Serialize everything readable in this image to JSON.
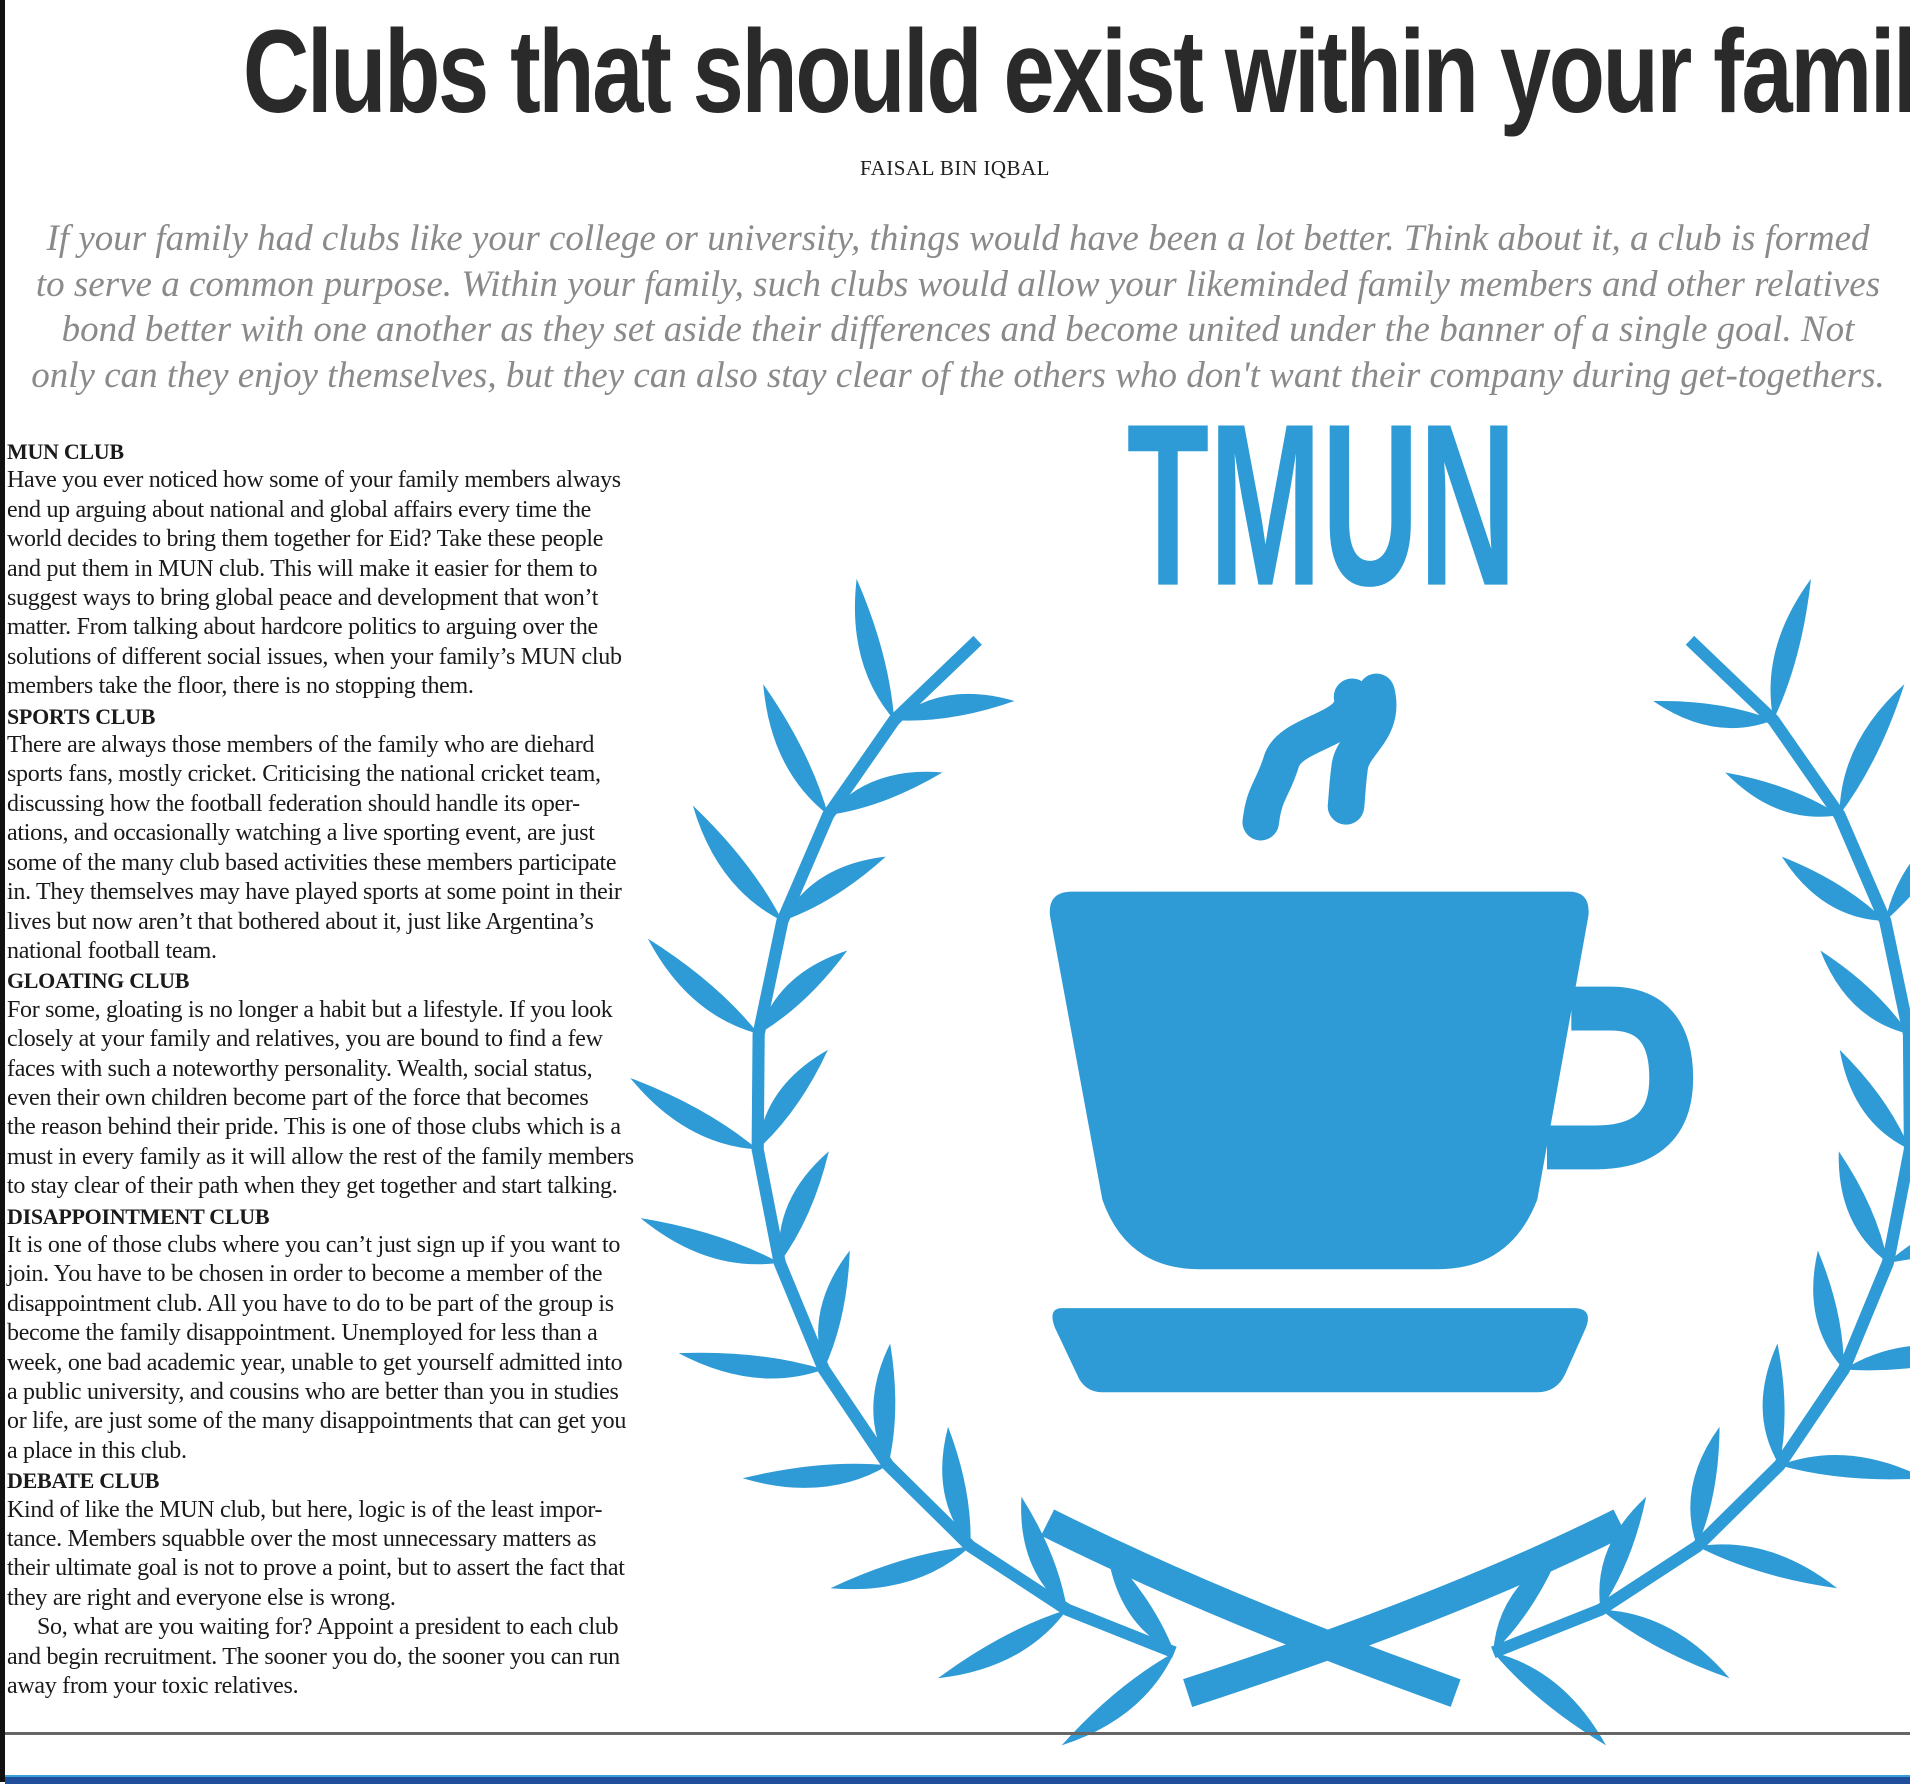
{
  "article": {
    "title": "Clubs that should exist within your family",
    "byline": "FAISAL BIN IQBAL",
    "intro_lines": [
      "If your family had clubs like your college or university, things would have been a lot better. Think about it, a club is formed",
      "to serve a common purpose. Within your family, such clubs would allow your likeminded family members and other relatives",
      "bond better with one another as they set aside their differences and become united under the banner of a single goal. Not",
      "only can they enjoy themselves, but they can also stay clear of the others who don't want their company during get-togethers."
    ],
    "sections": [
      {
        "heading": "MUN CLUB",
        "lines": [
          "Have you ever noticed how some of your family members always",
          "end up arguing about national and global affairs every time the",
          "world decides to bring them together for Eid? Take these people",
          "and put them in MUN club. This will make it easier for them to",
          "suggest ways to bring global peace and development that won’t",
          "matter. From talking about hardcore politics to arguing over the",
          "solutions of different social issues, when your family’s MUN club",
          "members take the floor, there is no stopping them."
        ]
      },
      {
        "heading": "SPORTS CLUB",
        "lines": [
          "There are always those members of the family who are diehard",
          "sports fans, mostly cricket. Criticising the national cricket team,",
          "discussing how the football federation should handle its oper-",
          "ations, and occasionally watching a live sporting event, are just",
          "some of the many club based activities these members participate",
          "in. They themselves may have played sports at some point in their",
          "lives but now aren’t that bothered about it, just like Argentina’s",
          "national football team."
        ]
      },
      {
        "heading": "GLOATING CLUB",
        "lines": [
          "For some, gloating is no longer a habit but a lifestyle. If you look",
          "closely at your family and relatives, you are bound to find a few",
          "faces with such a noteworthy personality. Wealth, social status,",
          "even their own children become part of the force that becomes",
          "the reason behind their pride. This is one of those clubs which is a",
          "must in every family as it will allow the rest of the family members",
          "to stay clear of their path when they get together and start talking."
        ]
      },
      {
        "heading": "DISAPPOINTMENT CLUB",
        "lines": [
          "It is one of those clubs where you can’t just sign up if you want to",
          "join. You have to be chosen in order to become a member of the",
          "disappointment club. All you have to do to be part of the group is",
          "become the family disappointment. Unemployed for less than a",
          "week, one bad academic year, unable to get yourself admitted into",
          "a public university, and cousins who are better than you in studies",
          "or life, are just some of the many disappointments that can get you",
          "a place in this club."
        ]
      },
      {
        "heading": "DEBATE CLUB",
        "lines": [
          "Kind of like the MUN club, but here, logic is of the least impor-",
          "tance. Members squabble over the most unnecessary matters as",
          "their ultimate goal is not to prove a point, but to assert the fact that",
          "they are right and everyone else is wrong."
        ]
      }
    ],
    "closing_lines": [
      "So, what are you waiting for? Appoint a president to each club",
      "and begin recruitment. The sooner you do, the sooner you can run",
      "away from your toxic relatives."
    ]
  },
  "illustration": {
    "logo_text": "TMUN",
    "icon": "coffee-cup-in-laurel-wreath-icon",
    "color": "#2e9bd6"
  },
  "colors": {
    "title": "#2a2a2a",
    "intro": "#8a8a8a",
    "footer_band": "#1f4e9c"
  }
}
